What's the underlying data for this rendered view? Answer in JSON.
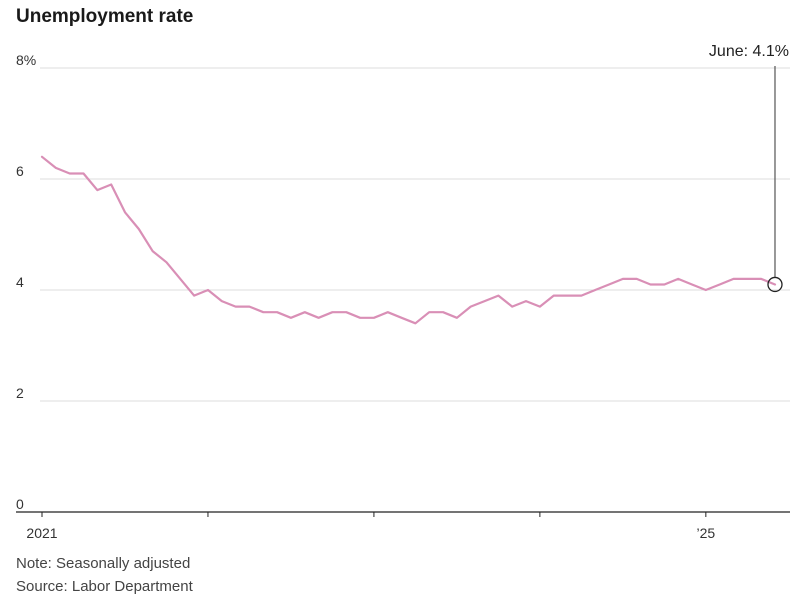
{
  "chart_data": {
    "type": "line",
    "title": "Unemployment rate",
    "xlabel": "",
    "ylabel": "",
    "ylim": [
      0,
      8
    ],
    "y_ticks": [
      {
        "value": 8,
        "label": "8%"
      },
      {
        "value": 6,
        "label": "6"
      },
      {
        "value": 4,
        "label": "4"
      },
      {
        "value": 2,
        "label": "2"
      },
      {
        "value": 0,
        "label": "0"
      }
    ],
    "x_ticks": [
      {
        "month_index": 0,
        "label": "2021"
      },
      {
        "month_index": 12,
        "label": ""
      },
      {
        "month_index": 24,
        "label": ""
      },
      {
        "month_index": 36,
        "label": ""
      },
      {
        "month_index": 48,
        "label": "’25"
      }
    ],
    "grid": true,
    "line_color": "#d98fb6",
    "series": [
      {
        "name": "",
        "start": "2021-01",
        "end": "2025-06",
        "values": [
          6.4,
          6.2,
          6.1,
          6.1,
          5.8,
          5.9,
          5.4,
          5.1,
          4.7,
          4.5,
          4.2,
          3.9,
          4.0,
          3.8,
          3.7,
          3.7,
          3.6,
          3.6,
          3.5,
          3.6,
          3.5,
          3.6,
          3.6,
          3.5,
          3.5,
          3.6,
          3.5,
          3.4,
          3.6,
          3.6,
          3.5,
          3.7,
          3.8,
          3.9,
          3.7,
          3.8,
          3.7,
          3.9,
          3.9,
          3.9,
          4.0,
          4.1,
          4.2,
          4.2,
          4.1,
          4.1,
          4.2,
          4.1,
          4.0,
          4.1,
          4.2,
          4.2,
          4.2,
          4.1
        ]
      }
    ],
    "annotation": {
      "label": "June: 4.1%",
      "month_index": 53,
      "value": 4.1
    }
  },
  "notes": {
    "note": "Note: Seasonally adjusted",
    "source": "Source: Labor Department"
  }
}
